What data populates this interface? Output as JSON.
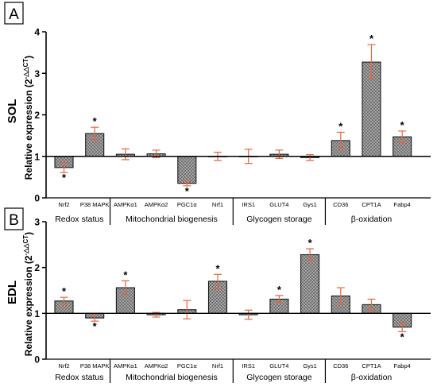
{
  "colors": {
    "bar_fill": "#9a9a9a",
    "bar_stroke": "#1a1a1a",
    "error": "#e8643c",
    "axis": "#000000"
  },
  "chart_data": [
    {
      "type": "bar",
      "panel_letter": "A",
      "tissue": "SOL",
      "ylabel_main": "Relative expression (2",
      "ylabel_sup": "-△△CT",
      "ylabel_close": ")",
      "ylim": [
        0,
        4
      ],
      "yticks": [
        "0",
        "1",
        "2",
        "3",
        "4"
      ],
      "baseline": 1,
      "categories": [
        "Nrf2",
        "P38 MAPK",
        "AMPKα1",
        "AMPKα2",
        "PGC1α",
        "Nrf1",
        "IRS1",
        "GLUT4",
        "Gys1",
        "CD36",
        "CPT1A",
        "Fabp4"
      ],
      "values": [
        0.73,
        1.55,
        1.05,
        1.06,
        0.35,
        1.0,
        1.0,
        1.05,
        0.97,
        1.38,
        3.27,
        1.47
      ],
      "errors": [
        0.12,
        0.15,
        0.13,
        0.09,
        0.06,
        0.1,
        0.17,
        0.1,
        0.07,
        0.2,
        0.42,
        0.14
      ],
      "significant": [
        true,
        true,
        false,
        false,
        true,
        false,
        false,
        false,
        false,
        true,
        true,
        true
      ],
      "star_symbol": "*",
      "groups": [
        {
          "label": "Redox status",
          "categories": [
            "Nrf2",
            "P38 MAPK"
          ]
        },
        {
          "label": "Mitochondrial biogenesis",
          "categories": [
            "AMPKα1",
            "AMPKα2",
            "PGC1α",
            "Nrf1"
          ]
        },
        {
          "label": "Glycogen storage",
          "categories": [
            "IRS1",
            "GLUT4",
            "Gys1"
          ]
        },
        {
          "label": "β-oxidation",
          "categories": [
            "CD36",
            "CPT1A",
            "Fabp4"
          ]
        }
      ]
    },
    {
      "type": "bar",
      "panel_letter": "B",
      "tissue": "EDL",
      "ylabel_main": "Relative expression (2",
      "ylabel_sup": "-△△CT",
      "ylabel_close": ")",
      "ylim": [
        0,
        3
      ],
      "yticks": [
        "0",
        "1",
        "2",
        "3"
      ],
      "baseline": 1,
      "categories": [
        "Nrf2",
        "P38 MAPK",
        "AMPKα1",
        "AMPKα2",
        "PGC1α",
        "Nrf1",
        "IRS1",
        "GLUT4",
        "Gys1",
        "CD36",
        "CPT1A",
        "Fabp4"
      ],
      "values": [
        1.27,
        0.9,
        1.56,
        0.97,
        1.08,
        1.7,
        0.97,
        1.31,
        2.28,
        1.38,
        1.19,
        0.7
      ],
      "errors": [
        0.08,
        0.07,
        0.15,
        0.05,
        0.2,
        0.15,
        0.1,
        0.08,
        0.13,
        0.18,
        0.12,
        0.1
      ],
      "significant": [
        true,
        true,
        true,
        false,
        false,
        true,
        false,
        true,
        true,
        false,
        false,
        true
      ],
      "star_symbol": "*",
      "groups": [
        {
          "label": "Redox status",
          "categories": [
            "Nrf2",
            "P38 MAPK"
          ]
        },
        {
          "label": "Mitochondrial biogenesis",
          "categories": [
            "AMPKα1",
            "AMPKα2",
            "PGC1α",
            "Nrf1"
          ]
        },
        {
          "label": "Glycogen storage",
          "categories": [
            "IRS1",
            "GLUT4",
            "Gys1"
          ]
        },
        {
          "label": "β-oxidation",
          "categories": [
            "CD36",
            "CPT1A",
            "Fabp4"
          ]
        }
      ]
    }
  ]
}
